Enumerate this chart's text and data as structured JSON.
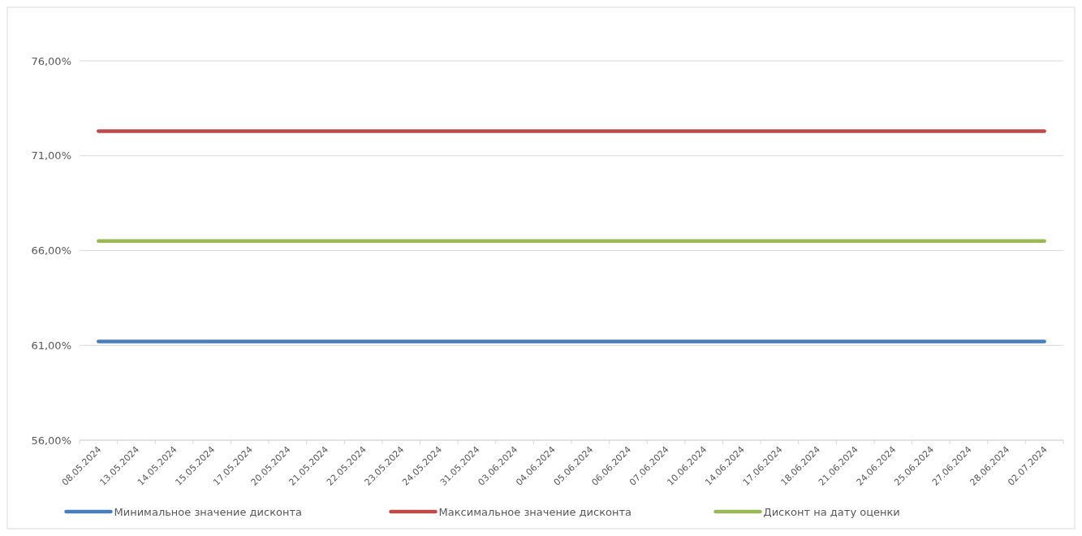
{
  "chart_data": {
    "type": "line",
    "categories": [
      "08.05.2024",
      "13.05.2024",
      "14.05.2024",
      "15.05.2024",
      "17.05.2024",
      "20.05.2024",
      "21.05.2024",
      "22.05.2024",
      "23.05.2024",
      "24.05.2024",
      "31.05.2024",
      "03.06.2024",
      "04.06.2024",
      "05.06.2024",
      "06.06.2024",
      "07.06.2024",
      "10.06.2024",
      "14.06.2024",
      "17.06.2024",
      "18.06.2024",
      "21.06.2024",
      "24.06.2024",
      "25.06.2024",
      "27.06.2024",
      "28.06.2024",
      "02.07.2024"
    ],
    "series": [
      {
        "name": "Минимальное значение дисконта",
        "color": "#4a7ebb",
        "values": [
          61.2,
          61.2,
          61.2,
          61.2,
          61.2,
          61.2,
          61.2,
          61.2,
          61.2,
          61.2,
          61.2,
          61.2,
          61.2,
          61.2,
          61.2,
          61.2,
          61.2,
          61.2,
          61.2,
          61.2,
          61.2,
          61.2,
          61.2,
          61.2,
          61.2,
          61.2
        ]
      },
      {
        "name": "Максимальное значение дисконта",
        "color": "#be4b48",
        "values": [
          72.3,
          72.3,
          72.3,
          72.3,
          72.3,
          72.3,
          72.3,
          72.3,
          72.3,
          72.3,
          72.3,
          72.3,
          72.3,
          72.3,
          72.3,
          72.3,
          72.3,
          72.3,
          72.3,
          72.3,
          72.3,
          72.3,
          72.3,
          72.3,
          72.3,
          72.3
        ]
      },
      {
        "name": "Дисконт на дату оценки",
        "color": "#98b954",
        "values": [
          66.5,
          66.5,
          66.5,
          66.5,
          66.5,
          66.5,
          66.5,
          66.5,
          66.5,
          66.5,
          66.5,
          66.5,
          66.5,
          66.5,
          66.5,
          66.5,
          66.5,
          66.5,
          66.5,
          66.5,
          66.5,
          66.5,
          66.5,
          66.5,
          66.5,
          66.5
        ]
      }
    ],
    "ylim": [
      56,
      76
    ],
    "yticks": [
      {
        "value": 56,
        "label": "56,00%"
      },
      {
        "value": 61,
        "label": "61,00%"
      },
      {
        "value": 66,
        "label": "66,00%"
      },
      {
        "value": 71,
        "label": "71,00%"
      },
      {
        "value": 76,
        "label": "76,00%"
      }
    ],
    "grid": "y",
    "legend": "bottom",
    "marker": "none",
    "line_style": "solid"
  }
}
